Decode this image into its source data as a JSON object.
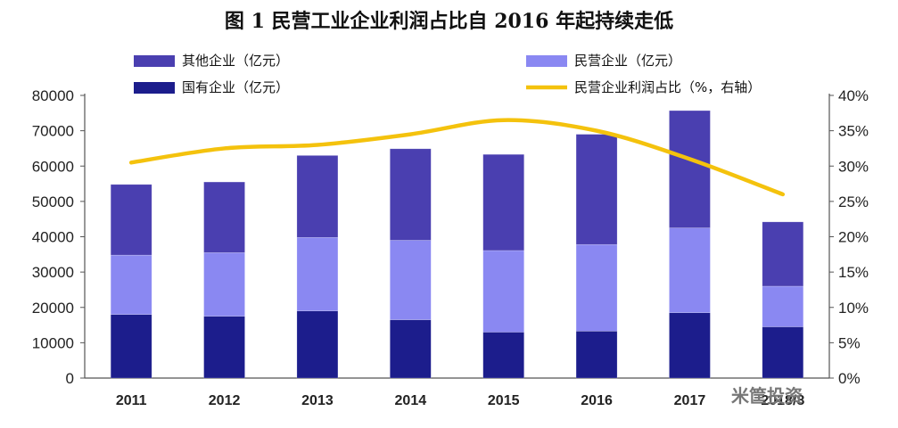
{
  "title": "图 1  民营工业企业利润占比自 2016 年起持续走低",
  "watermark": "米筐投资",
  "colors": {
    "other": "#4a3fb0",
    "private": "#8a88f2",
    "state": "#1c1d8c",
    "share": "#f4c20d"
  },
  "chart_data": {
    "type": "bar",
    "stacked": true,
    "categories": [
      "2011",
      "2012",
      "2013",
      "2014",
      "2015",
      "2016",
      "2017",
      "2018/8"
    ],
    "series": [
      {
        "name": "国有企业（亿元）",
        "key": "state",
        "values": [
          18000,
          17500,
          19000,
          16500,
          13000,
          13300,
          18500,
          14500
        ]
      },
      {
        "name": "民营企业（亿元）",
        "key": "private",
        "values": [
          16800,
          18000,
          20800,
          22500,
          23100,
          24500,
          24000,
          11500
        ]
      },
      {
        "name": "其他企业（亿元）",
        "key": "other",
        "values": [
          20000,
          20000,
          23200,
          25900,
          27200,
          31200,
          33200,
          18200
        ]
      }
    ],
    "line_series": {
      "name": "民营企业利润占比（%，右轴）",
      "axis": "right",
      "values": [
        30.5,
        32.5,
        33,
        34.5,
        36.5,
        35,
        31,
        26
      ]
    },
    "y_left": {
      "min": 0,
      "max": 80000,
      "ticks": [
        "0",
        "10000",
        "20000",
        "30000",
        "40000",
        "50000",
        "60000",
        "70000",
        "80000"
      ]
    },
    "y_right": {
      "min": 0,
      "max": 40,
      "ticks": [
        "0%",
        "5%",
        "10%",
        "15%",
        "20%",
        "25%",
        "30%",
        "35%",
        "40%"
      ]
    },
    "legend": {
      "position": "top",
      "entries": [
        {
          "label": "其他企业（亿元）",
          "key": "other",
          "kind": "box"
        },
        {
          "label": "民营企业（亿元）",
          "key": "private",
          "kind": "box"
        },
        {
          "label": "国有企业（亿元）",
          "key": "state",
          "kind": "box"
        },
        {
          "label": "民营企业利润占比（%，右轴）",
          "key": "share",
          "kind": "line"
        }
      ]
    }
  }
}
